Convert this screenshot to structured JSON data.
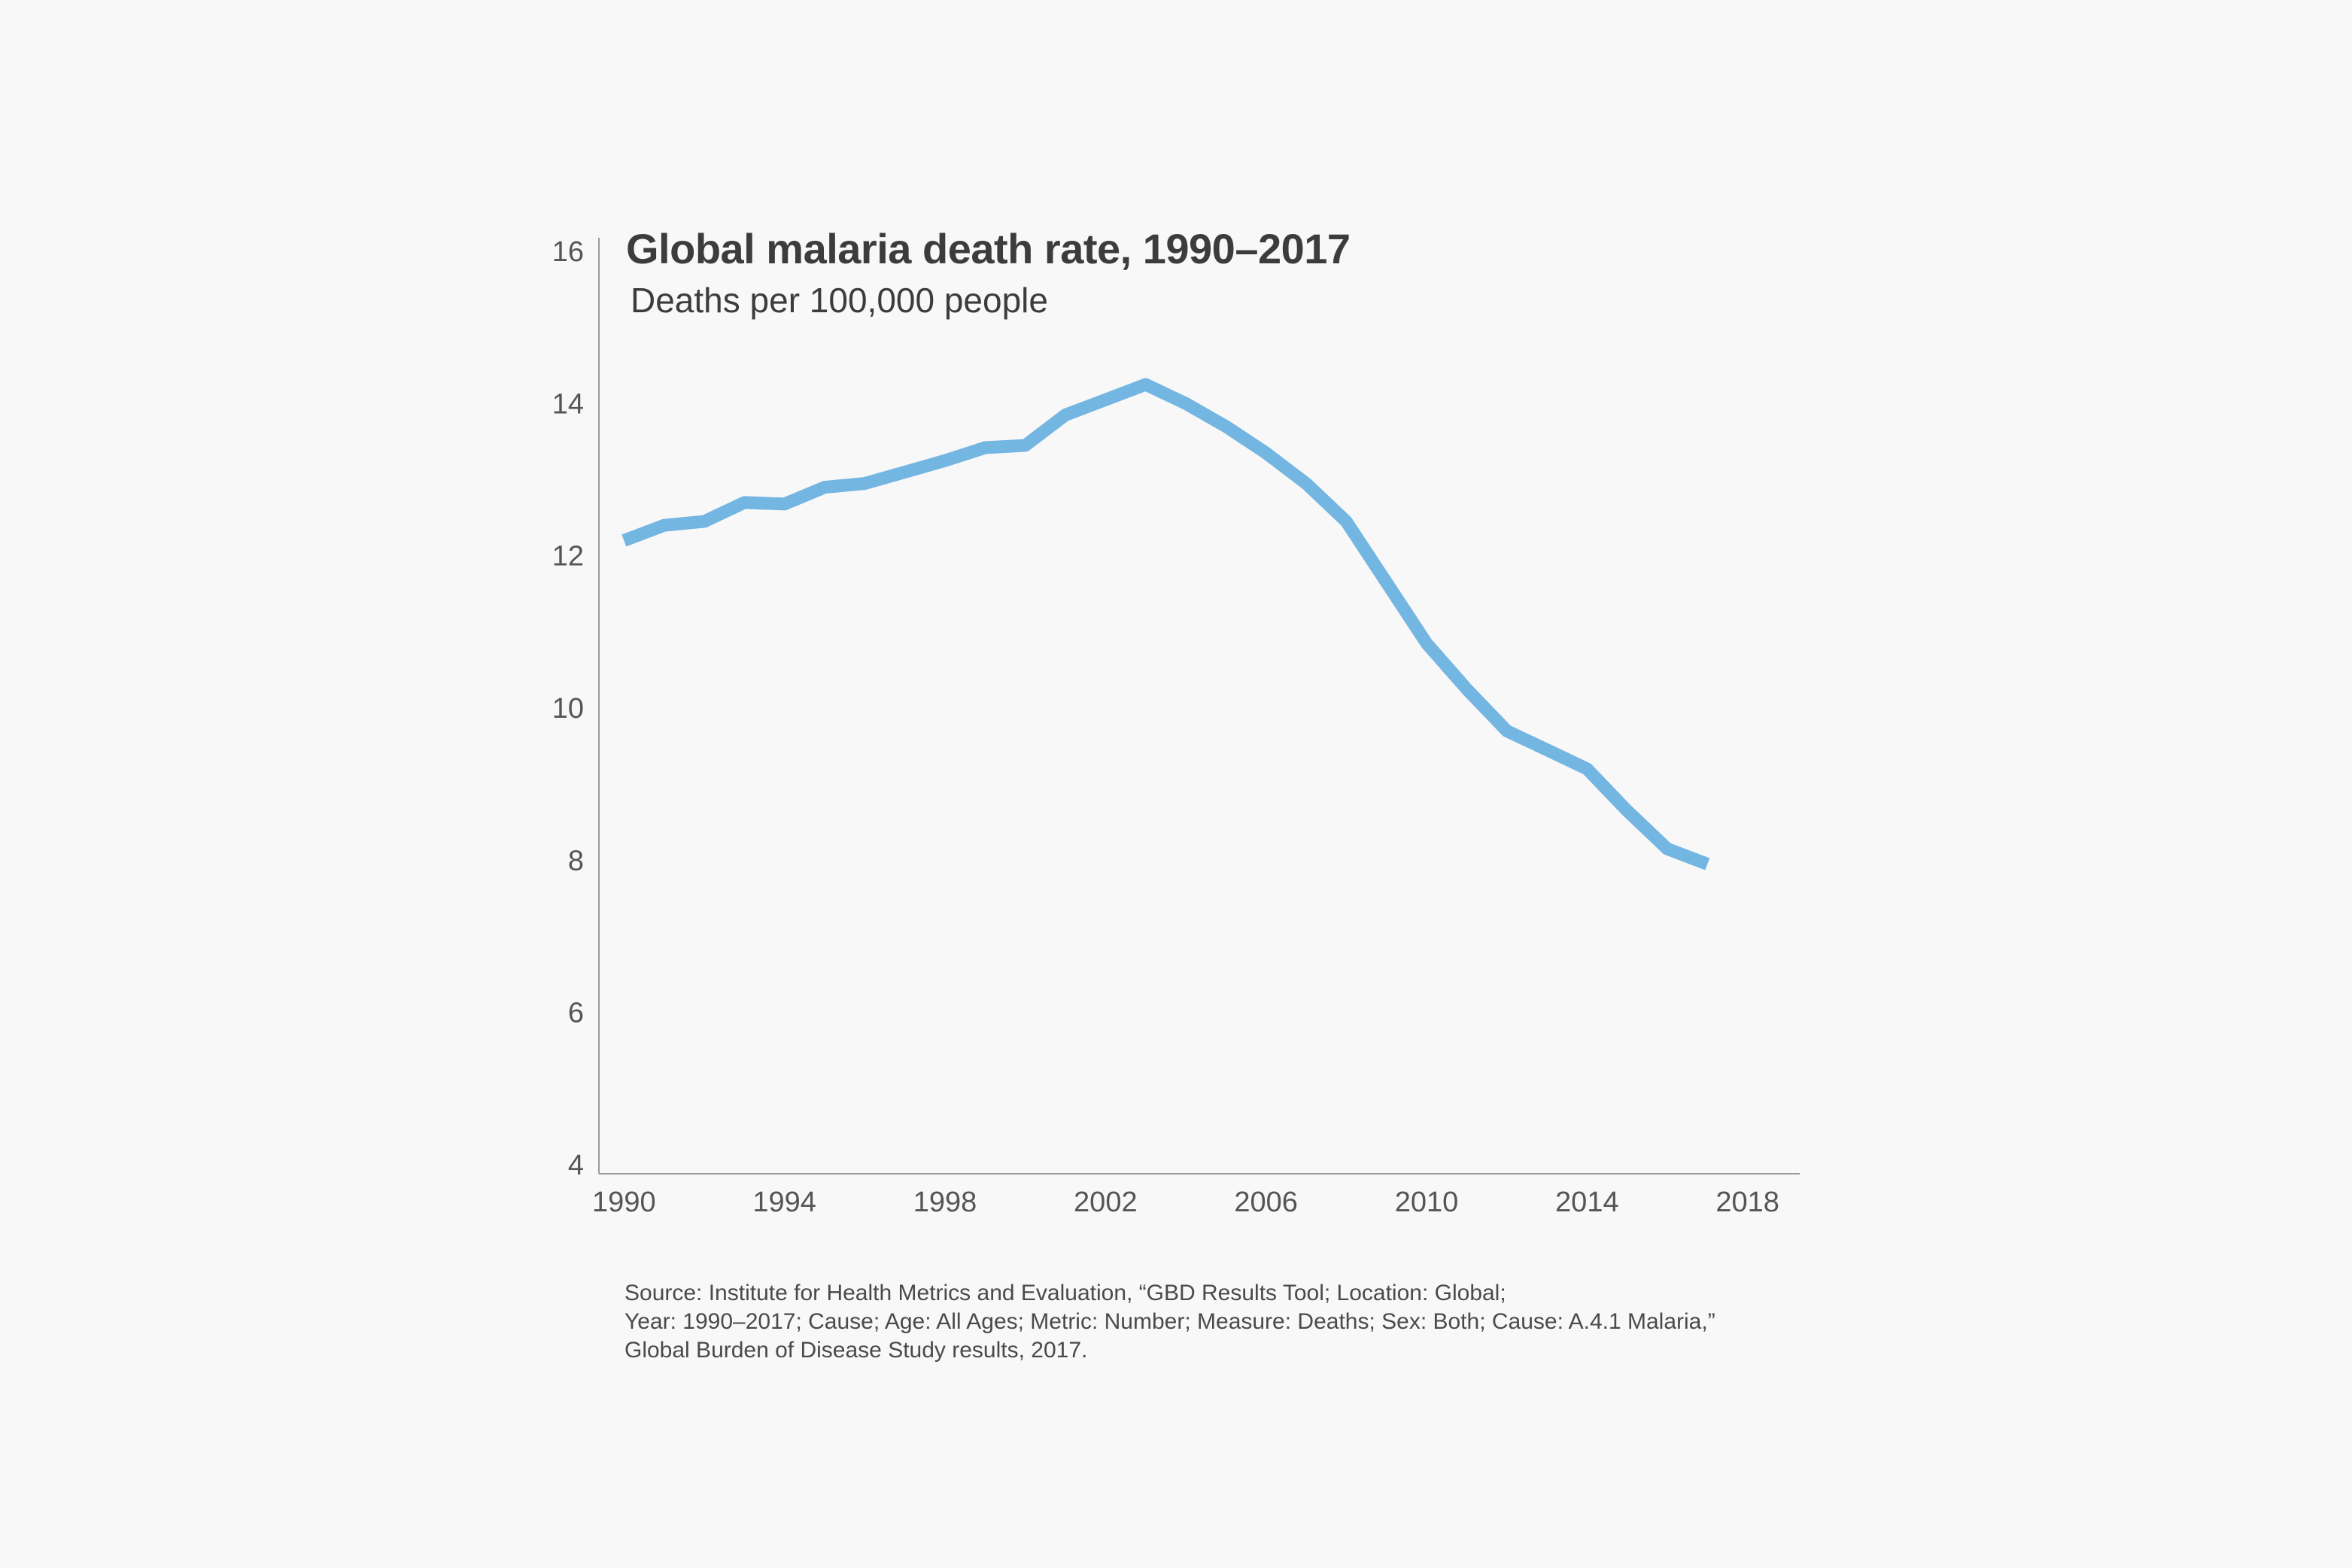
{
  "chart_data": {
    "type": "line",
    "title": "Global malaria death rate, 1990–2017",
    "subtitle": "Deaths per 100,000 people",
    "xlabel": "",
    "ylabel": "",
    "xlim": [
      1989,
      2019
    ],
    "ylim": [
      4,
      16
    ],
    "xticks": [
      1990,
      1994,
      1998,
      2002,
      2006,
      2010,
      2014,
      2018
    ],
    "yticks": [
      4,
      6,
      8,
      10,
      12,
      14,
      16
    ],
    "grid": false,
    "color": "#74b6e2",
    "series": [
      {
        "x": [
          1990,
          1991,
          1992,
          1993,
          1994,
          1995,
          1996,
          1997,
          1998,
          1999,
          2000,
          2001,
          2002,
          2003,
          2004,
          2005,
          2006,
          2007,
          2008,
          2009,
          2010,
          2011,
          2012,
          2013,
          2014,
          2015,
          2016,
          2017
        ],
        "values": [
          12.2,
          12.4,
          12.45,
          12.7,
          12.68,
          12.9,
          12.95,
          13.1,
          13.25,
          13.42,
          13.45,
          13.85,
          14.05,
          14.25,
          14.0,
          13.7,
          13.35,
          12.95,
          12.45,
          11.65,
          10.85,
          10.25,
          9.7,
          9.45,
          9.2,
          8.65,
          8.15,
          7.95
        ]
      }
    ]
  },
  "source": {
    "lines": [
      "Source: Institute for Health Metrics and Evaluation, “GBD Results Tool; Location: Global;",
      "Year: 1990–2017; Cause; Age: All Ages; Metric: Number; Measure: Deaths; Sex: Both; Cause: A.4.1 Malaria,”",
      "Global Burden of Disease Study results, 2017."
    ]
  }
}
